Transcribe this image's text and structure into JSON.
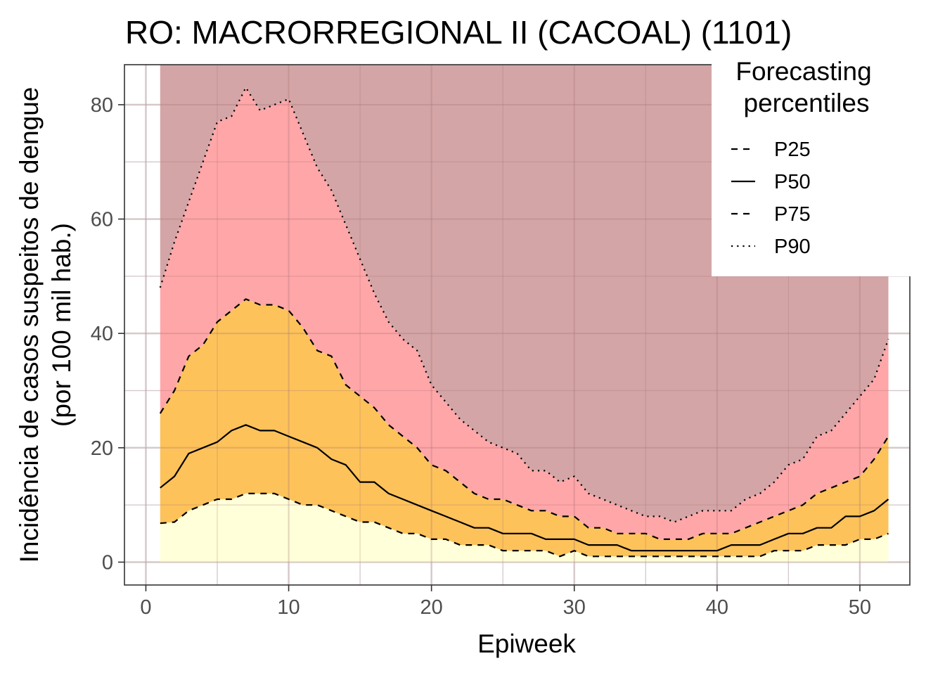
{
  "chart_data": {
    "type": "area",
    "title": "RO: MACRORREGIONAL II (CACOAL) (1101)",
    "xlabel": "Epiweek",
    "ylabel_lines": [
      "Incidência de casos suspeitos de dengue",
      "(por 100 mil hab.)"
    ],
    "xlim": [
      -1.5,
      53.5
    ],
    "ylim": [
      -4,
      87
    ],
    "x_ticks": [
      0,
      10,
      20,
      30,
      40,
      50
    ],
    "y_ticks": [
      0,
      20,
      40,
      60,
      80
    ],
    "grid": true,
    "legend": {
      "title_lines": [
        "Forecasting",
        "percentiles"
      ],
      "placement": "top-right-inside",
      "entries": [
        {
          "label": "P25",
          "linetype": "dashed"
        },
        {
          "label": "P50",
          "linetype": "solid"
        },
        {
          "label": "P75",
          "linetype": "dashed"
        },
        {
          "label": "P90",
          "linetype": "dotted"
        }
      ]
    },
    "band_colors": {
      "below_p25": "#ffffd9",
      "p25_p75": "#fdc25a",
      "p75_p90": "#ffa6a8",
      "above_p90": "#d4a5a6"
    },
    "x": [
      1,
      2,
      3,
      4,
      5,
      6,
      7,
      8,
      9,
      10,
      11,
      12,
      13,
      14,
      15,
      16,
      17,
      18,
      19,
      20,
      21,
      22,
      23,
      24,
      25,
      26,
      27,
      28,
      29,
      30,
      31,
      32,
      33,
      34,
      35,
      36,
      37,
      38,
      39,
      40,
      41,
      42,
      43,
      44,
      45,
      46,
      47,
      48,
      49,
      50,
      51,
      52
    ],
    "series": [
      {
        "name": "P25",
        "values": [
          6.8,
          7,
          9,
          10,
          11,
          11,
          12,
          12,
          12,
          11,
          10,
          10,
          9,
          8,
          7,
          7,
          6,
          5,
          5,
          4,
          4,
          3,
          3,
          3,
          2,
          2,
          2,
          2,
          1,
          2,
          1,
          1,
          1,
          1,
          1,
          1,
          1,
          1,
          1,
          1,
          1,
          1,
          1,
          2,
          2,
          2,
          3,
          3,
          3,
          4,
          4,
          5
        ]
      },
      {
        "name": "P50",
        "values": [
          13,
          15,
          19,
          20,
          21,
          23,
          24,
          23,
          23,
          22,
          21,
          20,
          18,
          17,
          14,
          14,
          12,
          11,
          10,
          9,
          8,
          7,
          6,
          6,
          5,
          5,
          5,
          4,
          4,
          4,
          3,
          3,
          3,
          2,
          2,
          2,
          2,
          2,
          2,
          2,
          3,
          3,
          3,
          4,
          5,
          5,
          6,
          6,
          8,
          8,
          9,
          11
        ]
      },
      {
        "name": "P75",
        "values": [
          26,
          30,
          36,
          38,
          42,
          44,
          46,
          45,
          45,
          44,
          41,
          37,
          36,
          31,
          29,
          27,
          24,
          22,
          20,
          17,
          16,
          14,
          12,
          11,
          11,
          10,
          9,
          9,
          8,
          8,
          6,
          6,
          5,
          5,
          5,
          4,
          4,
          4,
          5,
          5,
          5,
          6,
          7,
          8,
          9,
          10,
          12,
          13,
          14,
          15,
          18,
          22
        ]
      },
      {
        "name": "P90",
        "values": [
          48,
          56,
          63,
          70,
          77,
          78,
          83,
          79,
          80,
          81,
          75,
          69,
          65,
          59,
          53,
          47,
          42,
          39,
          37,
          31,
          28,
          25,
          23,
          21,
          20,
          19,
          16,
          16,
          14,
          15,
          12,
          11,
          10,
          9,
          8,
          8,
          7,
          8,
          9,
          9,
          9,
          11,
          12,
          14,
          17,
          18,
          22,
          23,
          26,
          29,
          32,
          39
        ]
      }
    ]
  }
}
